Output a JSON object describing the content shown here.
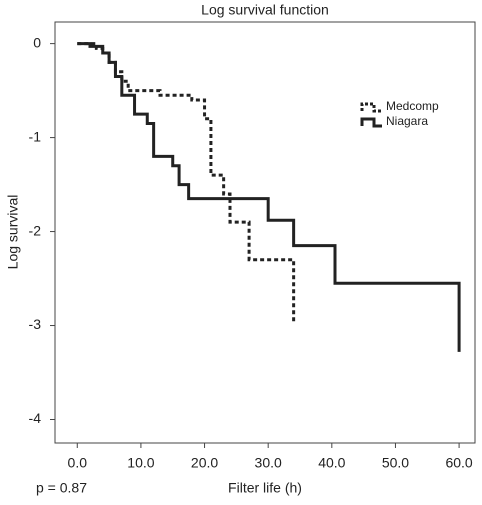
{
  "chart_data": {
    "type": "step",
    "title": "Log survival function",
    "xlabel": "Filter life (h)",
    "ylabel": "Log survival",
    "annotation": "p = 0.87",
    "xlim": [
      -3.5,
      62.5
    ],
    "ylim": [
      -4.25,
      0.23
    ],
    "xticks": [
      {
        "value": 0,
        "label": "0.0"
      },
      {
        "value": 10,
        "label": "10.0"
      },
      {
        "value": 20,
        "label": "20.0"
      },
      {
        "value": 30,
        "label": "30.0"
      },
      {
        "value": 40,
        "label": "40.0"
      },
      {
        "value": 50,
        "label": "50.0"
      },
      {
        "value": 60,
        "label": "60.0"
      }
    ],
    "yticks": [
      0,
      -1,
      -2,
      -3,
      -4
    ],
    "legend": "upper right",
    "series": [
      {
        "name": "Medcomp",
        "color": "#222222",
        "dash": true,
        "x": [
          0,
          3,
          4,
          5,
          6,
          7,
          8,
          13,
          18,
          20,
          21,
          23,
          24,
          27,
          34
        ],
        "values": [
          0,
          -0.05,
          -0.1,
          -0.2,
          -0.3,
          -0.4,
          -0.5,
          -0.55,
          -0.6,
          -0.8,
          -1.4,
          -1.6,
          -1.9,
          -2.3,
          -2.98
        ]
      },
      {
        "name": "Niagara",
        "color": "#222222",
        "dash": false,
        "x": [
          0,
          2,
          4,
          5,
          6,
          7,
          9,
          11,
          12,
          15,
          16,
          17.5,
          30,
          34,
          40.5,
          60
        ],
        "values": [
          0,
          -0.03,
          -0.1,
          -0.2,
          -0.35,
          -0.55,
          -0.75,
          -0.85,
          -1.2,
          -1.3,
          -1.5,
          -1.65,
          -1.88,
          -2.15,
          -2.55,
          -3.28
        ]
      }
    ]
  }
}
